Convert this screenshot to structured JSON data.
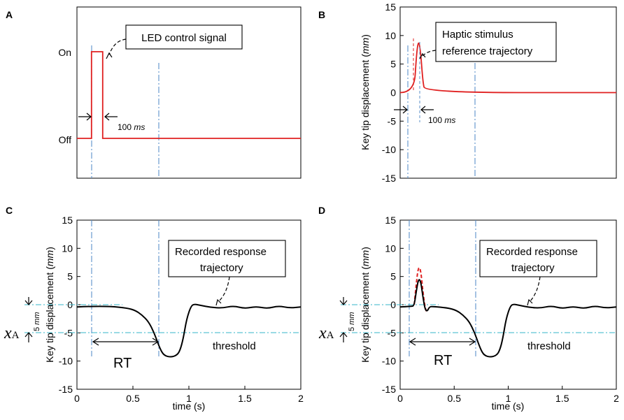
{
  "colors": {
    "signal": "#e02020",
    "response": "#000000",
    "guide_v": "#5b8fc9",
    "guide_h": "#35b5c8"
  },
  "chart_data": [
    {
      "id": "A",
      "type": "line",
      "panel_label": "A",
      "y_categories": [
        "On",
        "Off"
      ],
      "xlim": [
        0,
        2
      ],
      "series": [
        {
          "name": "LED control signal",
          "color": "#e02020",
          "x": [
            0,
            0.13,
            0.13,
            0.23,
            0.23,
            2.0
          ],
          "y": [
            "Off",
            "Off",
            "On",
            "On",
            "Off",
            "Off"
          ]
        }
      ],
      "annotations": {
        "callout": "LED control signal",
        "duration": "100",
        "duration_unit": "ms"
      }
    },
    {
      "id": "B",
      "type": "line",
      "panel_label": "B",
      "ylabel": "Key tip displacement",
      "ylabel_unit": "mm",
      "ylim": [
        -15,
        15
      ],
      "yticks": [
        "15",
        "10",
        "5",
        "0",
        "-5",
        "-10",
        "-15"
      ],
      "xlim": [
        0,
        2
      ],
      "series": [
        {
          "name": "Haptic stimulus reference trajectory",
          "color": "#e02020",
          "x": [
            0,
            0.13,
            0.15,
            0.17,
            0.19,
            0.21,
            0.23,
            2.0
          ],
          "y": [
            0,
            0,
            6.5,
            9.3,
            7.0,
            2.0,
            0,
            0
          ]
        }
      ],
      "annotations": {
        "callout_line1": "Haptic stimulus",
        "callout_line2": "reference trajectory",
        "duration": "100",
        "duration_unit": "ms"
      }
    },
    {
      "id": "C",
      "type": "line",
      "panel_label": "C",
      "ylabel": "Key tip displacement",
      "ylabel_unit": "mm",
      "xlabel": "time (s)",
      "ylim": [
        -15,
        15
      ],
      "yticks": [
        "15",
        "10",
        "5",
        "0",
        "-5",
        "-10",
        "-15"
      ],
      "xlim": [
        0,
        2
      ],
      "xticks": [
        "0",
        "0.5",
        "1",
        "1.5",
        "2"
      ],
      "series": [
        {
          "name": "Recorded response trajectory",
          "color": "#000000",
          "x": [
            0,
            0.1,
            0.3,
            0.45,
            0.52,
            0.58,
            0.64,
            0.69,
            0.73,
            0.76,
            0.79,
            0.84,
            0.89,
            0.92,
            0.95,
            0.98,
            1.02,
            1.05,
            1.1,
            1.2,
            1.3,
            1.4,
            1.5,
            1.6,
            1.7,
            1.8,
            1.9,
            2.0
          ],
          "y": [
            -0.4,
            -0.3,
            -0.3,
            -0.6,
            -1.0,
            -1.8,
            -3.0,
            -5.0,
            -7.2,
            -8.5,
            -9.1,
            -9.3,
            -9.0,
            -8.2,
            -6.0,
            -2.5,
            -0.2,
            0.1,
            -0.1,
            -0.5,
            -0.6,
            -0.2,
            -0.7,
            -0.3,
            -0.7,
            -0.2,
            -0.6,
            -0.4
          ]
        }
      ],
      "annotations": {
        "callout_line1": "Recorded response",
        "callout_line2": "trajectory",
        "threshold": "threshold",
        "rt": "RT",
        "xa_symbol": "x",
        "xa_sub": "A",
        "offset": "5",
        "offset_unit": "mm",
        "threshold_value": -5
      }
    },
    {
      "id": "D",
      "type": "line",
      "panel_label": "D",
      "ylabel": "Key tip displacement",
      "ylabel_unit": "mm",
      "xlabel": "time (s)",
      "ylim": [
        -15,
        15
      ],
      "yticks": [
        "15",
        "10",
        "5",
        "0",
        "-5",
        "-10",
        "-15"
      ],
      "xlim": [
        0,
        2
      ],
      "xticks": [
        "0",
        "0.5",
        "1",
        "1.5",
        "2"
      ],
      "series": [
        {
          "name": "Recorded response trajectory",
          "color": "#000000",
          "x": [
            0,
            0.1,
            0.13,
            0.15,
            0.17,
            0.19,
            0.21,
            0.23,
            0.25,
            0.27,
            0.3,
            0.45,
            0.52,
            0.58,
            0.64,
            0.69,
            0.73,
            0.76,
            0.79,
            0.84,
            0.89,
            0.92,
            0.95,
            0.98,
            1.02,
            1.05,
            1.1,
            1.2,
            1.3,
            1.4,
            1.5,
            1.6,
            1.7,
            1.8,
            1.9,
            2.0
          ],
          "y": [
            -0.4,
            -0.3,
            -0.2,
            2.5,
            4.6,
            4.2,
            1.5,
            -0.8,
            -1.2,
            -0.4,
            -0.3,
            -0.6,
            -1.0,
            -1.8,
            -3.0,
            -5.0,
            -7.2,
            -8.5,
            -9.1,
            -9.3,
            -9.0,
            -8.2,
            -6.0,
            -2.5,
            -0.2,
            0.1,
            -0.1,
            -0.5,
            -0.6,
            -0.2,
            -0.7,
            -0.3,
            -0.7,
            -0.2,
            -0.6,
            -0.4
          ]
        },
        {
          "name": "Haptic stimulus (dashed)",
          "color": "#e02020",
          "x": [
            0.13,
            0.15,
            0.17,
            0.19,
            0.21,
            0.23,
            0.25
          ],
          "y": [
            0,
            4.0,
            6.8,
            6.2,
            2.5,
            -0.5,
            -1.5
          ]
        }
      ],
      "annotations": {
        "callout_line1": "Recorded response",
        "callout_line2": "trajectory",
        "threshold": "threshold",
        "rt": "RT",
        "xa_symbol": "x",
        "xa_sub": "A",
        "offset": "5",
        "offset_unit": "mm",
        "threshold_value": -5
      }
    }
  ]
}
